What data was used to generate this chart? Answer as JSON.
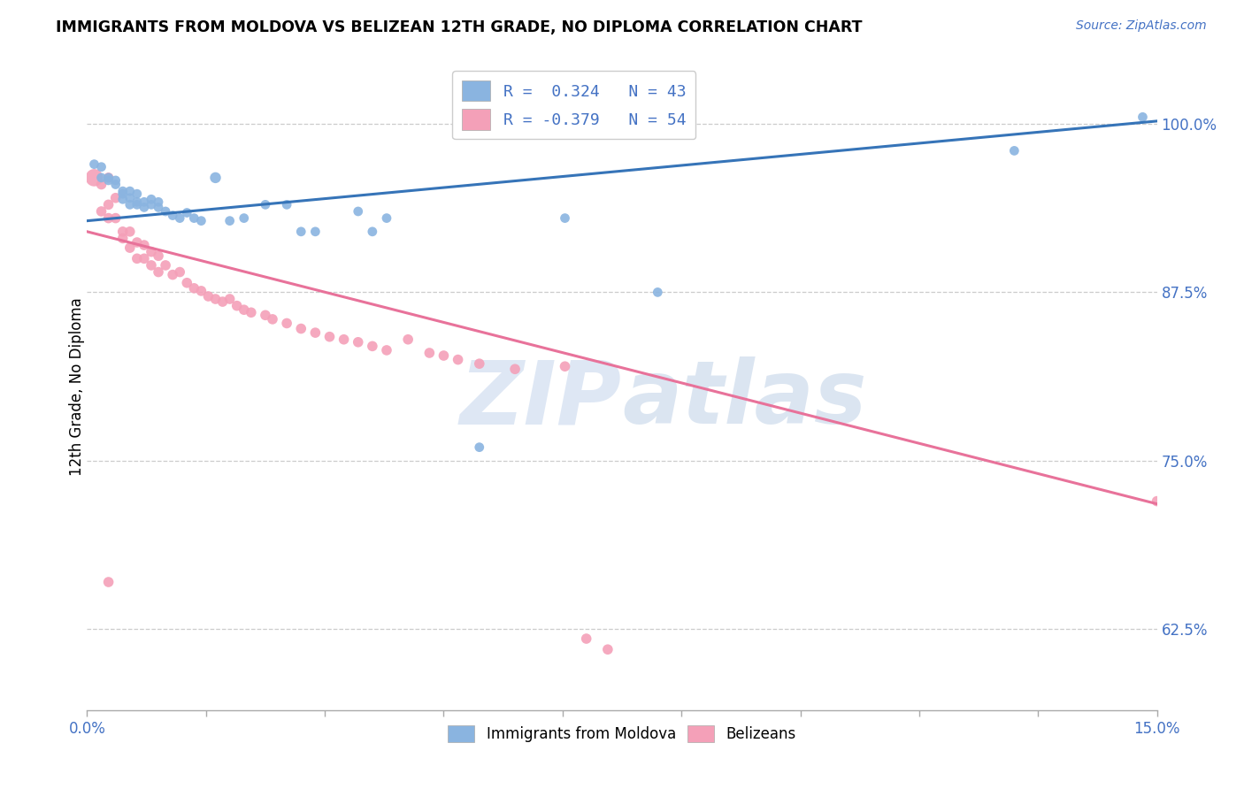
{
  "title": "IMMIGRANTS FROM MOLDOVA VS BELIZEAN 12TH GRADE, NO DIPLOMA CORRELATION CHART",
  "source": "Source: ZipAtlas.com",
  "ylabel": "12th Grade, No Diploma",
  "ylabel_right_labels": [
    "100.0%",
    "87.5%",
    "75.0%",
    "62.5%"
  ],
  "ylabel_right_values": [
    1.0,
    0.875,
    0.75,
    0.625
  ],
  "xlim": [
    0.0,
    0.15
  ],
  "ylim": [
    0.565,
    1.045
  ],
  "legend_entry1": "R =  0.324   N = 43",
  "legend_entry2": "R = -0.379   N = 54",
  "legend_label1": "Immigrants from Moldova",
  "legend_label2": "Belizeans",
  "watermark_zip": "ZIP",
  "watermark_atlas": "atlas",
  "blue_color": "#8ab4e0",
  "pink_color": "#f4a0b8",
  "blue_line_color": "#3674b8",
  "pink_line_color": "#e8729a",
  "blue_line": [
    [
      0.0,
      0.928
    ],
    [
      0.15,
      1.002
    ]
  ],
  "pink_line": [
    [
      0.0,
      0.92
    ],
    [
      0.15,
      0.718
    ]
  ],
  "moldova_points": [
    [
      0.001,
      0.97
    ],
    [
      0.002,
      0.968
    ],
    [
      0.002,
      0.96
    ],
    [
      0.003,
      0.96
    ],
    [
      0.003,
      0.958
    ],
    [
      0.004,
      0.958
    ],
    [
      0.004,
      0.955
    ],
    [
      0.005,
      0.95
    ],
    [
      0.005,
      0.948
    ],
    [
      0.005,
      0.944
    ],
    [
      0.006,
      0.95
    ],
    [
      0.006,
      0.945
    ],
    [
      0.006,
      0.94
    ],
    [
      0.007,
      0.948
    ],
    [
      0.007,
      0.942
    ],
    [
      0.007,
      0.94
    ],
    [
      0.008,
      0.942
    ],
    [
      0.008,
      0.938
    ],
    [
      0.009,
      0.944
    ],
    [
      0.009,
      0.94
    ],
    [
      0.01,
      0.942
    ],
    [
      0.01,
      0.938
    ],
    [
      0.011,
      0.935
    ],
    [
      0.012,
      0.932
    ],
    [
      0.013,
      0.93
    ],
    [
      0.014,
      0.934
    ],
    [
      0.015,
      0.93
    ],
    [
      0.016,
      0.928
    ],
    [
      0.018,
      0.96
    ],
    [
      0.02,
      0.928
    ],
    [
      0.022,
      0.93
    ],
    [
      0.025,
      0.94
    ],
    [
      0.028,
      0.94
    ],
    [
      0.03,
      0.92
    ],
    [
      0.032,
      0.92
    ],
    [
      0.038,
      0.935
    ],
    [
      0.04,
      0.92
    ],
    [
      0.042,
      0.93
    ],
    [
      0.055,
      0.76
    ],
    [
      0.067,
      0.93
    ],
    [
      0.08,
      0.875
    ],
    [
      0.13,
      0.98
    ],
    [
      0.148,
      1.005
    ]
  ],
  "moldova_sizes": [
    60,
    60,
    60,
    60,
    60,
    60,
    60,
    60,
    60,
    60,
    60,
    60,
    60,
    60,
    60,
    60,
    60,
    60,
    60,
    60,
    60,
    60,
    60,
    60,
    60,
    60,
    60,
    60,
    80,
    60,
    60,
    60,
    60,
    60,
    60,
    60,
    60,
    60,
    60,
    60,
    60,
    60,
    60
  ],
  "belize_points": [
    [
      0.001,
      0.96
    ],
    [
      0.002,
      0.955
    ],
    [
      0.002,
      0.935
    ],
    [
      0.003,
      0.96
    ],
    [
      0.003,
      0.94
    ],
    [
      0.003,
      0.93
    ],
    [
      0.004,
      0.945
    ],
    [
      0.004,
      0.93
    ],
    [
      0.005,
      0.92
    ],
    [
      0.005,
      0.915
    ],
    [
      0.006,
      0.92
    ],
    [
      0.006,
      0.908
    ],
    [
      0.007,
      0.912
    ],
    [
      0.007,
      0.9
    ],
    [
      0.008,
      0.91
    ],
    [
      0.008,
      0.9
    ],
    [
      0.009,
      0.905
    ],
    [
      0.009,
      0.895
    ],
    [
      0.01,
      0.902
    ],
    [
      0.01,
      0.89
    ],
    [
      0.011,
      0.895
    ],
    [
      0.012,
      0.888
    ],
    [
      0.013,
      0.89
    ],
    [
      0.014,
      0.882
    ],
    [
      0.015,
      0.878
    ],
    [
      0.016,
      0.876
    ],
    [
      0.017,
      0.872
    ],
    [
      0.018,
      0.87
    ],
    [
      0.019,
      0.868
    ],
    [
      0.02,
      0.87
    ],
    [
      0.021,
      0.865
    ],
    [
      0.022,
      0.862
    ],
    [
      0.023,
      0.86
    ],
    [
      0.025,
      0.858
    ],
    [
      0.026,
      0.855
    ],
    [
      0.028,
      0.852
    ],
    [
      0.03,
      0.848
    ],
    [
      0.032,
      0.845
    ],
    [
      0.034,
      0.842
    ],
    [
      0.036,
      0.84
    ],
    [
      0.038,
      0.838
    ],
    [
      0.04,
      0.835
    ],
    [
      0.042,
      0.832
    ],
    [
      0.045,
      0.84
    ],
    [
      0.048,
      0.83
    ],
    [
      0.05,
      0.828
    ],
    [
      0.052,
      0.825
    ],
    [
      0.055,
      0.822
    ],
    [
      0.06,
      0.818
    ],
    [
      0.003,
      0.66
    ],
    [
      0.067,
      0.82
    ],
    [
      0.07,
      0.618
    ],
    [
      0.073,
      0.61
    ],
    [
      0.15,
      0.72
    ]
  ],
  "belize_sizes": [
    200,
    70,
    70,
    70,
    70,
    70,
    70,
    70,
    70,
    70,
    70,
    70,
    70,
    70,
    70,
    70,
    70,
    70,
    70,
    70,
    70,
    70,
    70,
    70,
    70,
    70,
    70,
    70,
    70,
    70,
    70,
    70,
    70,
    70,
    70,
    70,
    70,
    70,
    70,
    70,
    70,
    70,
    70,
    70,
    70,
    70,
    70,
    70,
    70,
    70,
    70,
    70,
    70,
    70
  ]
}
